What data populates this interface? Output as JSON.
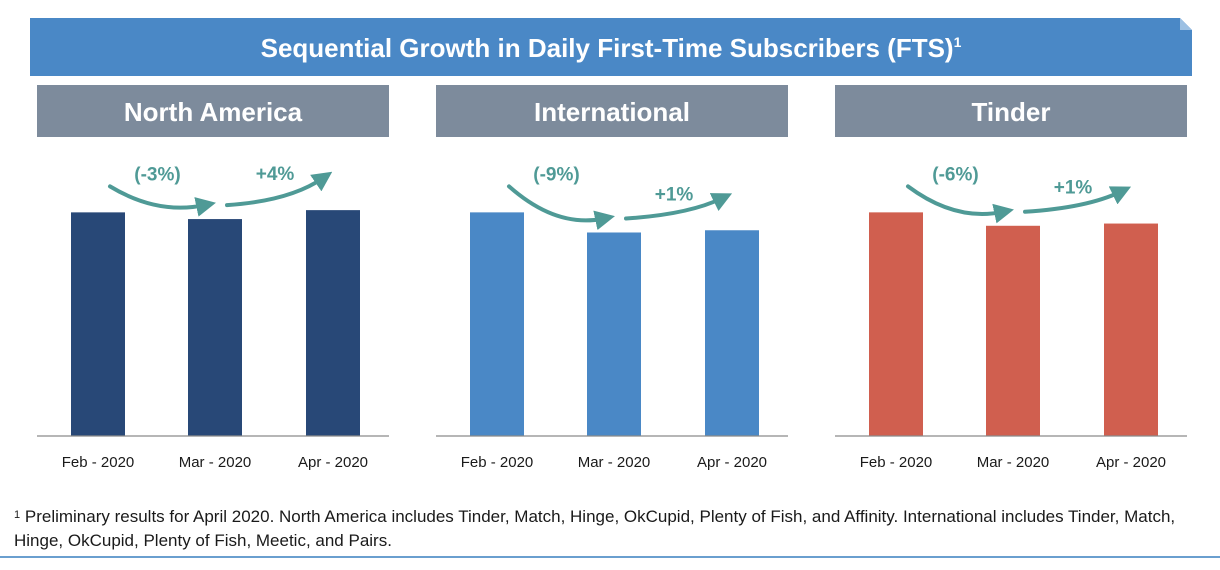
{
  "banner": {
    "title": "Sequential Growth in Daily First-Time Subscribers (FTS)",
    "footnote_marker": "1"
  },
  "colors": {
    "banner": "#4a88c6",
    "header_bg": "#7d8b9c",
    "arrow": "#4f9a96",
    "north_america": "#284877",
    "international": "#4a88c6",
    "tinder": "#d05f4f"
  },
  "chart_data": [
    {
      "type": "bar",
      "title": "North America",
      "categories": [
        "Feb - 2020",
        "Mar - 2020",
        "Apr - 2020"
      ],
      "values": [
        100,
        97,
        101
      ],
      "ylim": [
        0,
        110
      ],
      "growth_labels": [
        "(-3%)",
        "+4%"
      ],
      "color": "#284877",
      "xlabel": "",
      "ylabel": "",
      "grid": false,
      "legend": "none"
    },
    {
      "type": "bar",
      "title": "International",
      "categories": [
        "Feb - 2020",
        "Mar - 2020",
        "Apr - 2020"
      ],
      "values": [
        100,
        91,
        92
      ],
      "ylim": [
        0,
        110
      ],
      "growth_labels": [
        "(-9%)",
        "+1%"
      ],
      "color": "#4a88c6",
      "xlabel": "",
      "ylabel": "",
      "grid": false,
      "legend": "none"
    },
    {
      "type": "bar",
      "title": "Tinder",
      "categories": [
        "Feb - 2020",
        "Mar - 2020",
        "Apr - 2020"
      ],
      "values": [
        100,
        94,
        95
      ],
      "ylim": [
        0,
        110
      ],
      "growth_labels": [
        "(-6%)",
        "+1%"
      ],
      "color": "#d05f4f",
      "xlabel": "",
      "ylabel": "",
      "grid": false,
      "legend": "none"
    }
  ],
  "footnote": {
    "marker": "1",
    "text": "Preliminary results for April 2020. North America includes Tinder, Match, Hinge, OkCupid, Plenty of Fish, and Affinity. International includes Tinder, Match, Hinge, OkCupid, Plenty of Fish, Meetic, and Pairs."
  }
}
